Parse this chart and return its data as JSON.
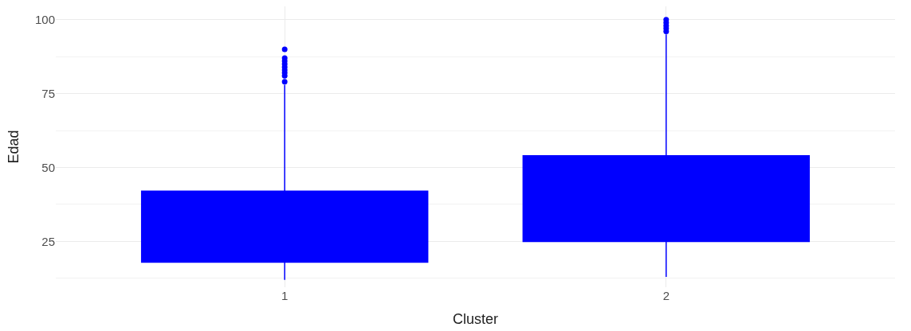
{
  "chart_data": {
    "type": "box",
    "xlabel": "Cluster",
    "ylabel": "Edad",
    "categories": [
      "1",
      "2"
    ],
    "color": "#0000ff",
    "boxes": [
      {
        "low": 12,
        "q1": 18,
        "q3": 42,
        "high": 78,
        "outliers": [
          79,
          81,
          82,
          83,
          84,
          85,
          86,
          87,
          90
        ]
      },
      {
        "low": 13,
        "q1": 25,
        "q3": 54,
        "high": 95,
        "outliers": [
          96,
          97,
          98,
          99,
          100
        ]
      }
    ],
    "ylim": [
      9.5,
      104.5
    ],
    "yticks": [
      25,
      50,
      75,
      100
    ],
    "grid": true
  }
}
